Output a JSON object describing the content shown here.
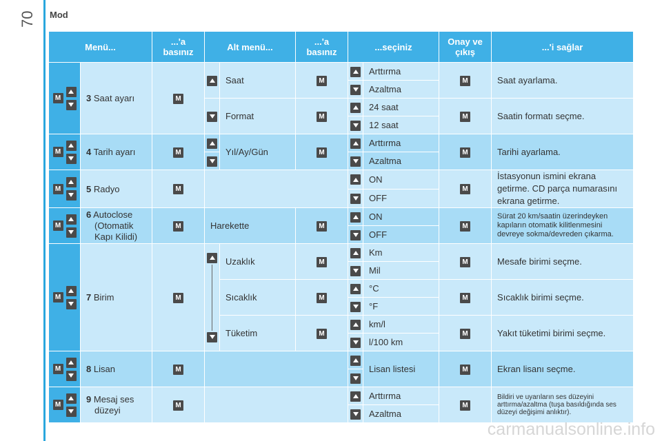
{
  "page_number": "70",
  "section_title": "Mod",
  "headers": [
    "Menü...",
    "...'a basınız",
    "Alt menü...",
    "...'a basınız",
    "...seçiniz",
    "Onay ve çıkış",
    "...'i sağlar"
  ],
  "key_label": "M",
  "rows": {
    "r3": {
      "num": "3",
      "name": "Saat ayarı",
      "sub1": "Saat",
      "sub1_opts": [
        "Arttırma",
        "Azaltma"
      ],
      "sub1_result": "Saat ayarlama.",
      "sub2": "Format",
      "sub2_opts": [
        "24 saat",
        "12 saat"
      ],
      "sub2_result": "Saatin formatı seçme."
    },
    "r4": {
      "num": "4",
      "name": "Tarih ayarı",
      "sub": "Yıl/Ay/Gün",
      "opts": [
        "Arttırma",
        "Azaltma"
      ],
      "result": "Tarihi ayarlama."
    },
    "r5": {
      "num": "5",
      "name": "Radyo",
      "opts": [
        "ON",
        "OFF"
      ],
      "result": "İstasyonun ismini ekrana getirme. CD parça numarasını ekrana getirme."
    },
    "r6": {
      "num": "6",
      "name": "Autoclose (Otomatik Kapı Kilidi)",
      "name_l1": "Autoclose",
      "name_l2": "(Otomatik",
      "name_l3": "Kapı Kilidi)",
      "sub": "Harekette",
      "opts": [
        "ON",
        "OFF"
      ],
      "result": "Sürat 20 km/saatin üzerindeyken kapıların otomatik kilitlenmesini devreye sokma/devreden çıkarma."
    },
    "r7": {
      "num": "7",
      "name": "Birim",
      "sub1": "Uzaklık",
      "sub1_opts": [
        "Km",
        "Mil"
      ],
      "sub1_result": "Mesafe birimi seçme.",
      "sub2": "Sıcaklık",
      "sub2_opts": [
        "°C",
        "°F"
      ],
      "sub2_result": "Sıcaklık birimi seçme.",
      "sub3": "Tüketim",
      "sub3_opts": [
        "km/l",
        "l/100 km"
      ],
      "sub3_result": "Yakıt tüketimi birimi seçme."
    },
    "r8": {
      "num": "8",
      "name": "Lisan",
      "opt": "Lisan listesi",
      "result": "Ekran lisanı seçme."
    },
    "r9": {
      "num": "9",
      "name_l1": "Mesaj ses",
      "name_l2": "düzeyi",
      "opts": [
        "Arttırma",
        "Azaltma"
      ],
      "result": "Bildiri ve uyarıların ses düzeyini arttırma/azaltma (tuşa basıldığında ses düzeyi değişimi anlıktır)."
    }
  },
  "watermark": "carmanualsonline.info",
  "colors": {
    "header": "#3fb0e6",
    "row_light": "#c9e9fa",
    "row_dark": "#a8dcf6",
    "key": "#4a4a4a"
  }
}
